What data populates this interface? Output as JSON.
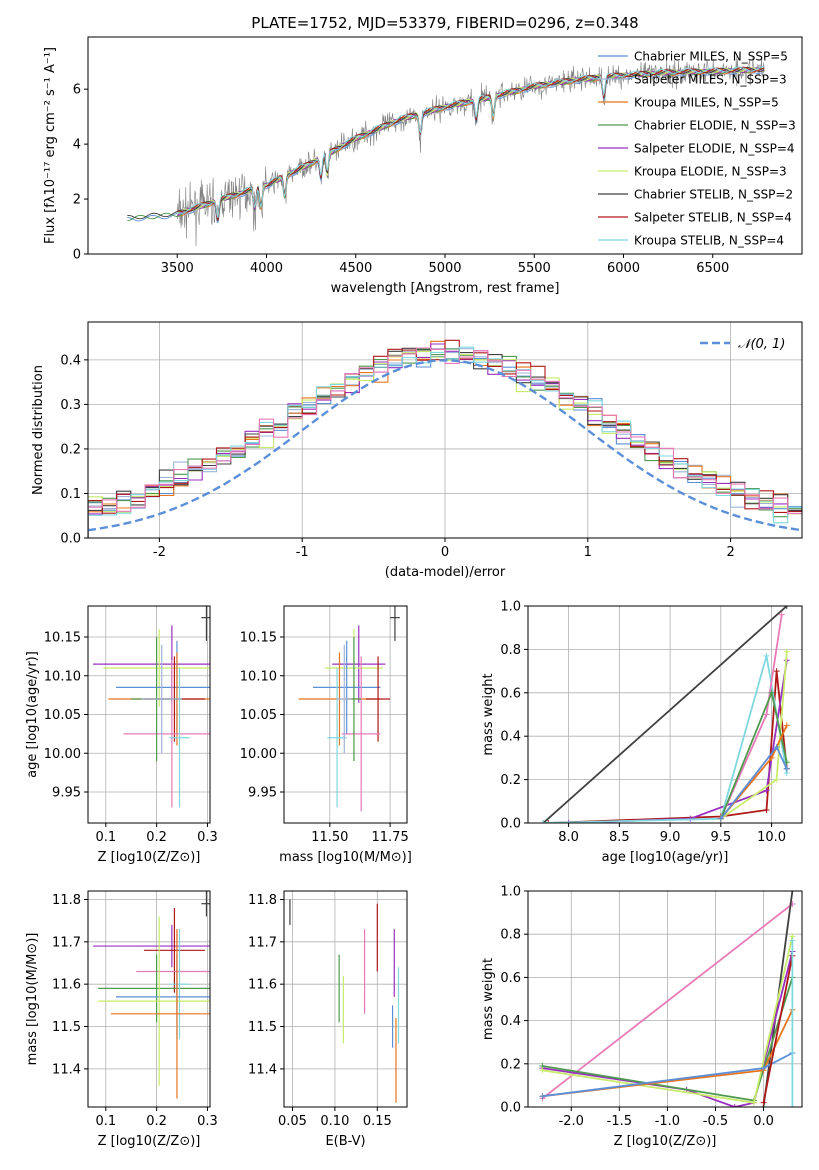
{
  "figure": {
    "title": "PLATE=1752, MJD=53379, FIBERID=0296, z=0.348"
  },
  "colors": {
    "chabrier_miles": "#5b8fd8",
    "salpeter_miles": "#9fb4d8",
    "kroupa_miles": "#e8741e",
    "chabrier_elodie": "#4e9a4e",
    "salpeter_elodie": "#9b30c0",
    "kroupa_elodie": "#c8ec6a",
    "chabrier_stelib": "#404040",
    "salpeter_stelib": "#b01818",
    "kroupa_stelib": "#7fd8e0",
    "pink": "#e87ab8",
    "data": "#808080",
    "gaussian": "#5b8fd8"
  },
  "chart_data": [
    {
      "type": "line",
      "id": "spectrum",
      "xlabel": "wavelength [Angstrom, rest frame]",
      "ylabel": "Flux [fλ10⁻¹⁷ erg cm⁻² s⁻¹ A⁻¹]",
      "xlim": [
        3000,
        7000
      ],
      "ylim": [
        0,
        7.9
      ],
      "xticks": [
        3500,
        4000,
        4500,
        5000,
        5500,
        6000,
        6500
      ],
      "yticks": [
        0,
        2,
        4,
        6
      ],
      "continuum": [
        [
          3220,
          1.3
        ],
        [
          3500,
          1.45
        ],
        [
          3800,
          2.1
        ],
        [
          4000,
          2.5
        ],
        [
          4250,
          3.3
        ],
        [
          4500,
          4.2
        ],
        [
          4750,
          4.9
        ],
        [
          5000,
          5.35
        ],
        [
          5250,
          5.7
        ],
        [
          5500,
          6.1
        ],
        [
          5750,
          6.35
        ],
        [
          6000,
          6.5
        ],
        [
          6250,
          6.6
        ],
        [
          6500,
          6.65
        ],
        [
          6750,
          6.7
        ]
      ],
      "legend": [
        {
          "label": "Chabrier MILES, N_SSP=5",
          "color": "chabrier_miles"
        },
        {
          "label": "Salpeter MILES, N_SSP=3",
          "color": "salpeter_miles"
        },
        {
          "label": "Kroupa MILES, N_SSP=5",
          "color": "kroupa_miles"
        },
        {
          "label": "Chabrier ELODIE, N_SSP=3",
          "color": "chabrier_elodie"
        },
        {
          "label": "Salpeter ELODIE, N_SSP=4",
          "color": "salpeter_elodie"
        },
        {
          "label": "Kroupa ELODIE, N_SSP=3",
          "color": "kroupa_elodie"
        },
        {
          "label": "Chabrier STELIB, N_SSP=2",
          "color": "chabrier_stelib"
        },
        {
          "label": "Salpeter STELIB, N_SSP=4",
          "color": "salpeter_stelib"
        },
        {
          "label": "Kroupa STELIB, N_SSP=4",
          "color": "kroupa_stelib"
        }
      ]
    },
    {
      "type": "step",
      "id": "residuals",
      "xlabel": "(data-model)/error",
      "ylabel": "Normed distribution",
      "xlim": [
        -2.5,
        2.5
      ],
      "ylim": [
        0,
        0.485
      ],
      "xticks": [
        -2,
        -1,
        0,
        1,
        2
      ],
      "yticks": [
        0.0,
        0.1,
        0.2,
        0.3,
        0.4
      ],
      "grid": true,
      "legend_label": "𝒩(0, 1)",
      "legend_position": "top-right"
    },
    {
      "type": "errorbar",
      "id": "age-vs-Z",
      "xlabel": "Z [log10(Z/Z⊙)]",
      "ylabel": "age  [log10(age/yr)]",
      "xlim": [
        0.065,
        0.305
      ],
      "ylim": [
        9.91,
        10.19
      ],
      "xticks": [
        0.1,
        0.2,
        0.3
      ],
      "yticks": [
        9.95,
        10.0,
        10.05,
        10.1,
        10.15
      ],
      "grid": true,
      "points": [
        {
          "color": "salpeter_elodie",
          "x": 0.23,
          "xerr": 0.155,
          "y": 10.115,
          "yerr": 0.05
        },
        {
          "color": "kroupa_elodie",
          "x": 0.205,
          "xerr": 0.11,
          "y": 10.11,
          "yerr": 0.05
        },
        {
          "color": "chabrier_miles",
          "x": 0.24,
          "xerr": 0.12,
          "y": 10.085,
          "yerr": 0.06
        },
        {
          "color": "kroupa_miles",
          "x": 0.24,
          "xerr": 0.135,
          "y": 10.07,
          "yerr": 0.06
        },
        {
          "color": "salpeter_stelib",
          "x": 0.235,
          "xerr": 0.06,
          "y": 10.07,
          "yerr": 0.055
        },
        {
          "color": "pink",
          "x": 0.23,
          "xerr": 0.095,
          "y": 10.025,
          "yerr": 0.095
        },
        {
          "color": "chabrier_elodie",
          "x": 0.2,
          "xerr": 0.05,
          "y": 10.07,
          "yerr": 0.08
        },
        {
          "color": "kroupa_stelib",
          "x": 0.245,
          "xerr": 0.02,
          "y": 10.02,
          "yerr": 0.09
        },
        {
          "color": "salpeter_miles",
          "x": 0.21,
          "xerr": 0.04,
          "y": 10.07,
          "yerr": 0.07
        },
        {
          "color": "chabrier_stelib",
          "x": 0.298,
          "xerr": 0.01,
          "y": 10.175,
          "yerr": 0.03
        }
      ]
    },
    {
      "type": "errorbar",
      "id": "age-vs-mass",
      "xlabel": "mass [log10(M/M⊙)]",
      "ylabel": "",
      "xlim": [
        11.31,
        11.82
      ],
      "ylim": [
        9.91,
        10.19
      ],
      "xticks": [
        11.5,
        11.75
      ],
      "xticklabels": [
        "11.50",
        "11.75"
      ],
      "yticks": [
        9.95,
        10.0,
        10.05,
        10.1,
        10.15
      ],
      "grid": true,
      "points": [
        {
          "color": "salpeter_elodie",
          "x": 11.62,
          "xerr": 0.11,
          "y": 10.115,
          "yerr": 0.05
        },
        {
          "color": "kroupa_elodie",
          "x": 11.6,
          "xerr": 0.12,
          "y": 10.11,
          "yerr": 0.05
        },
        {
          "color": "chabrier_miles",
          "x": 11.57,
          "xerr": 0.14,
          "y": 10.085,
          "yerr": 0.06
        },
        {
          "color": "kroupa_miles",
          "x": 11.54,
          "xerr": 0.17,
          "y": 10.07,
          "yerr": 0.06
        },
        {
          "color": "salpeter_stelib",
          "x": 11.7,
          "xerr": 0.05,
          "y": 10.07,
          "yerr": 0.055
        },
        {
          "color": "pink",
          "x": 11.63,
          "xerr": 0.08,
          "y": 10.025,
          "yerr": 0.1
        },
        {
          "color": "chabrier_elodie",
          "x": 11.6,
          "xerr": 0.03,
          "y": 10.07,
          "yerr": 0.08
        },
        {
          "color": "kroupa_stelib",
          "x": 11.53,
          "xerr": 0.04,
          "y": 10.02,
          "yerr": 0.09
        },
        {
          "color": "salpeter_miles",
          "x": 11.56,
          "xerr": 0.03,
          "y": 10.07,
          "yerr": 0.07
        },
        {
          "color": "chabrier_stelib",
          "x": 11.77,
          "xerr": 0.02,
          "y": 10.175,
          "yerr": 0.03
        }
      ]
    },
    {
      "type": "line",
      "id": "weight-vs-age",
      "xlabel": "age  [log10(age/yr)]",
      "ylabel": "mass weight",
      "xlim": [
        7.6,
        10.3
      ],
      "ylim": [
        0,
        1.0
      ],
      "xticks": [
        8.0,
        8.5,
        9.0,
        9.5,
        10.0
      ],
      "yticks": [
        0.0,
        0.2,
        0.4,
        0.6,
        0.8,
        1.0
      ],
      "grid": true,
      "series": [
        {
          "color": "chabrier_stelib",
          "x": [
            7.75,
            10.15
          ],
          "y": [
            0.0,
            1.0
          ]
        },
        {
          "color": "salpeter_stelib",
          "x": [
            7.8,
            9.5,
            9.95,
            10.05,
            10.15
          ],
          "y": [
            0.0,
            0.03,
            0.06,
            0.7,
            0.25
          ]
        },
        {
          "color": "salpeter_elodie",
          "x": [
            8.0,
            9.2,
            9.95,
            10.15
          ],
          "y": [
            0.0,
            0.02,
            0.15,
            0.75
          ]
        },
        {
          "color": "kroupa_stelib",
          "x": [
            7.75,
            9.5,
            9.95,
            10.15
          ],
          "y": [
            0.0,
            0.02,
            0.77,
            0.23
          ]
        },
        {
          "color": "pink",
          "x": [
            9.5,
            9.95,
            10.1
          ],
          "y": [
            0.02,
            0.5,
            0.96
          ]
        },
        {
          "color": "kroupa_elodie",
          "x": [
            9.5,
            10.05,
            10.15
          ],
          "y": [
            0.02,
            0.2,
            0.79
          ]
        },
        {
          "color": "chabrier_elodie",
          "x": [
            9.5,
            10.0,
            10.15
          ],
          "y": [
            0.02,
            0.6,
            0.28
          ]
        },
        {
          "color": "kroupa_miles",
          "x": [
            9.5,
            10.0,
            10.15
          ],
          "y": [
            0.02,
            0.3,
            0.45
          ]
        },
        {
          "color": "chabrier_miles",
          "x": [
            9.5,
            10.05,
            10.15
          ],
          "y": [
            0.02,
            0.35,
            0.25
          ]
        }
      ]
    },
    {
      "type": "errorbar",
      "id": "mass-vs-Z",
      "xlabel": "Z [log10(Z/Z⊙)]",
      "ylabel": "mass [log10(M/M⊙)]",
      "xlim": [
        0.065,
        0.305
      ],
      "ylim": [
        11.31,
        11.82
      ],
      "xticks": [
        0.1,
        0.2,
        0.3
      ],
      "yticks": [
        11.4,
        11.5,
        11.6,
        11.7,
        11.8
      ],
      "grid": true,
      "points": [
        {
          "color": "salpeter_elodie",
          "x": 0.23,
          "xerr": 0.155,
          "y": 11.69,
          "yerr": 0.05
        },
        {
          "color": "salpeter_stelib",
          "x": 0.235,
          "xerr": 0.06,
          "y": 11.68,
          "yerr": 0.1
        },
        {
          "color": "pink",
          "x": 0.24,
          "xerr": 0.08,
          "y": 11.63,
          "yerr": 0.1
        },
        {
          "color": "chabrier_elodie",
          "x": 0.2,
          "xerr": 0.115,
          "y": 11.59,
          "yerr": 0.08
        },
        {
          "color": "kroupa_stelib",
          "x": 0.245,
          "xerr": 0.02,
          "y": 11.6,
          "yerr": 0.13
        },
        {
          "color": "chabrier_miles",
          "x": 0.24,
          "xerr": 0.12,
          "y": 11.57,
          "yerr": 0.1
        },
        {
          "color": "kroupa_elodie",
          "x": 0.205,
          "xerr": 0.12,
          "y": 11.56,
          "yerr": 0.2
        },
        {
          "color": "kroupa_miles",
          "x": 0.24,
          "xerr": 0.13,
          "y": 11.53,
          "yerr": 0.2
        },
        {
          "color": "chabrier_stelib",
          "x": 0.298,
          "xerr": 0.01,
          "y": 11.79,
          "yerr": 0.03
        }
      ]
    },
    {
      "type": "errorbar",
      "id": "mass-vs-ebv",
      "xlabel": "E(B-V)",
      "ylabel": "",
      "xlim": [
        0.04,
        0.185
      ],
      "ylim": [
        11.31,
        11.82
      ],
      "xticks": [
        0.05,
        0.1,
        0.15
      ],
      "yticks": [
        11.4,
        11.5,
        11.6,
        11.7,
        11.8
      ],
      "grid": true,
      "points": [
        {
          "color": "chabrier_stelib",
          "x": 0.047,
          "y": 11.77,
          "yerr": 0.03
        },
        {
          "color": "chabrier_elodie",
          "x": 0.105,
          "y": 11.59,
          "yerr": 0.08
        },
        {
          "color": "kroupa_elodie",
          "x": 0.11,
          "y": 11.54,
          "yerr": 0.08
        },
        {
          "color": "pink",
          "x": 0.135,
          "y": 11.63,
          "yerr": 0.1
        },
        {
          "color": "salpeter_stelib",
          "x": 0.15,
          "y": 11.71,
          "yerr": 0.08
        },
        {
          "color": "salpeter_elodie",
          "x": 0.17,
          "y": 11.65,
          "yerr": 0.08
        },
        {
          "color": "kroupa_stelib",
          "x": 0.175,
          "y": 11.55,
          "yerr": 0.09
        },
        {
          "color": "kroupa_miles",
          "x": 0.172,
          "y": 11.42,
          "yerr": 0.1
        },
        {
          "color": "chabrier_miles",
          "x": 0.168,
          "y": 11.5,
          "yerr": 0.05
        }
      ]
    },
    {
      "type": "line",
      "id": "weight-vs-Z",
      "xlabel": "Z [log10(Z/Z⊙)]",
      "ylabel": "mass weight",
      "xlim": [
        -2.45,
        0.4
      ],
      "ylim": [
        0,
        1.0
      ],
      "xticks": [
        -2.0,
        -1.5,
        -1.0,
        -0.5,
        0.0
      ],
      "yticks": [
        0.0,
        0.2,
        0.4,
        0.6,
        0.8,
        1.0
      ],
      "grid": true,
      "series": [
        {
          "color": "pink",
          "x": [
            -2.3,
            0.3
          ],
          "y": [
            0.04,
            0.94
          ]
        },
        {
          "color": "chabrier_stelib",
          "x": [
            0.0,
            0.3
          ],
          "y": [
            0.0,
            1.0
          ]
        },
        {
          "color": "salpeter_elodie",
          "x": [
            -2.3,
            -0.8,
            -0.3,
            -0.1,
            0.3
          ],
          "y": [
            0.18,
            0.08,
            0.0,
            0.02,
            0.72
          ]
        },
        {
          "color": "chabrier_elodie",
          "x": [
            -2.3,
            -0.1,
            0.3
          ],
          "y": [
            0.19,
            0.03,
            0.6
          ]
        },
        {
          "color": "kroupa_elodie",
          "x": [
            -2.3,
            -0.1,
            0.3
          ],
          "y": [
            0.17,
            0.02,
            0.79
          ]
        },
        {
          "color": "kroupa_miles",
          "x": [
            -2.3,
            0.0,
            0.3
          ],
          "y": [
            0.05,
            0.17,
            0.45
          ]
        },
        {
          "color": "chabrier_miles",
          "x": [
            -2.3,
            0.0,
            0.3
          ],
          "y": [
            0.05,
            0.18,
            0.25
          ]
        },
        {
          "color": "salpeter_stelib",
          "x": [
            0.0,
            0.3
          ],
          "y": [
            0.02,
            0.7
          ]
        },
        {
          "color": "kroupa_stelib",
          "x": [
            0.3,
            0.3
          ],
          "y": [
            0.0,
            0.77
          ]
        }
      ]
    }
  ]
}
